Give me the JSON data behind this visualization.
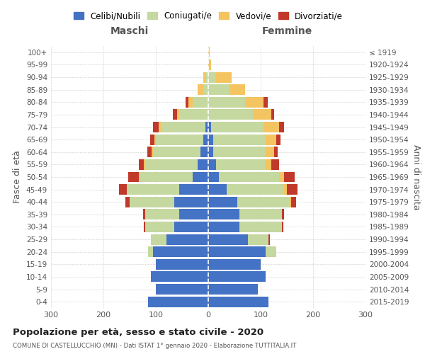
{
  "age_groups": [
    "0-4",
    "5-9",
    "10-14",
    "15-19",
    "20-24",
    "25-29",
    "30-34",
    "35-39",
    "40-44",
    "45-49",
    "50-54",
    "55-59",
    "60-64",
    "65-69",
    "70-74",
    "75-79",
    "80-84",
    "85-89",
    "90-94",
    "95-99",
    "100+"
  ],
  "birth_years": [
    "2015-2019",
    "2010-2014",
    "2005-2009",
    "2000-2004",
    "1995-1999",
    "1990-1994",
    "1985-1989",
    "1980-1984",
    "1975-1979",
    "1970-1974",
    "1965-1969",
    "1960-1964",
    "1955-1959",
    "1950-1954",
    "1945-1949",
    "1940-1944",
    "1935-1939",
    "1930-1934",
    "1925-1929",
    "1920-1924",
    "≤ 1919"
  ],
  "males": {
    "celibi": [
      115,
      100,
      110,
      100,
      105,
      80,
      65,
      55,
      65,
      55,
      30,
      20,
      15,
      10,
      5,
      0,
      0,
      0,
      0,
      0,
      0
    ],
    "coniugati": [
      0,
      0,
      0,
      0,
      10,
      30,
      55,
      65,
      85,
      100,
      100,
      100,
      90,
      90,
      85,
      55,
      30,
      10,
      5,
      0,
      0
    ],
    "vedovi": [
      0,
      0,
      0,
      0,
      0,
      0,
      0,
      0,
      0,
      0,
      3,
      3,
      3,
      3,
      5,
      5,
      8,
      10,
      5,
      0,
      0
    ],
    "divorziati": [
      0,
      0,
      0,
      0,
      0,
      0,
      3,
      5,
      8,
      15,
      20,
      10,
      8,
      8,
      10,
      8,
      5,
      0,
      0,
      0,
      0
    ]
  },
  "females": {
    "nubili": [
      115,
      95,
      110,
      100,
      110,
      75,
      60,
      60,
      55,
      35,
      20,
      15,
      10,
      10,
      5,
      0,
      0,
      0,
      0,
      0,
      0
    ],
    "coniugate": [
      0,
      0,
      0,
      0,
      20,
      40,
      80,
      80,
      100,
      110,
      115,
      95,
      100,
      100,
      100,
      85,
      70,
      40,
      15,
      0,
      0
    ],
    "vedove": [
      0,
      0,
      0,
      0,
      0,
      0,
      0,
      0,
      3,
      5,
      10,
      10,
      15,
      20,
      30,
      35,
      35,
      30,
      30,
      5,
      3
    ],
    "divorziate": [
      0,
      0,
      0,
      0,
      0,
      3,
      3,
      5,
      10,
      20,
      20,
      15,
      8,
      8,
      10,
      5,
      8,
      0,
      0,
      0,
      0
    ]
  },
  "colors": {
    "celibi_nubili": "#4472C4",
    "coniugati": "#C5D8A0",
    "vedovi": "#F4C460",
    "divorziati": "#C0392B"
  },
  "title": "Popolazione per età, sesso e stato civile - 2020",
  "subtitle": "COMUNE DI CASTELLUCCHIO (MN) - Dati ISTAT 1° gennaio 2020 - Elaborazione TUTTITALIA.IT",
  "xlabel_left": "Maschi",
  "xlabel_right": "Femmine",
  "ylabel_left": "Fasce di età",
  "ylabel_right": "Anni di nascita",
  "xlim": 300,
  "bg_color": "#ffffff",
  "grid_color": "#cccccc"
}
